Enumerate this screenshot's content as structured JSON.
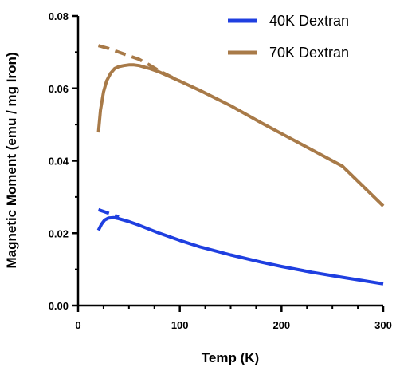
{
  "chart_data": {
    "type": "line",
    "xlabel": "Temp (K)",
    "ylabel": "Magnetic Moment (emu / mg Iron)",
    "xlim": [
      0,
      300
    ],
    "ylim": [
      0,
      0.08
    ],
    "xticks": [
      "0",
      "100",
      "200",
      "300"
    ],
    "yticks": [
      "0.00",
      "0.02",
      "0.04",
      "0.06",
      "0.08"
    ],
    "grid": false,
    "legend_position": "top-right",
    "series": [
      {
        "name": "40K Dextran",
        "color": "#1f3fe0",
        "curves": [
          {
            "style": "solid",
            "x": [
              20,
              23,
              26,
              30,
              35,
              40,
              50,
              60,
              80,
              100,
              120,
              150,
              180,
              200,
              230,
              260,
              300
            ],
            "y": [
              0.0208,
              0.0225,
              0.0236,
              0.0242,
              0.0243,
              0.024,
              0.0232,
              0.0222,
              0.02,
              0.018,
              0.0162,
              0.014,
              0.012,
              0.0108,
              0.0092,
              0.0078,
              0.006
            ]
          },
          {
            "style": "dashed",
            "x": [
              20,
              25,
              30,
              35,
              40
            ],
            "y": [
              0.0265,
              0.026,
              0.0255,
              0.025,
              0.0245
            ]
          }
        ]
      },
      {
        "name": "70K Dextran",
        "color": "#a87a48",
        "curves": [
          {
            "style": "solid",
            "x": [
              20,
              22,
              25,
              28,
              32,
              36,
              40,
              45,
              50,
              55,
              60,
              70,
              80,
              100,
              120,
              150,
              180,
              200,
              230,
              260,
              300
            ],
            "y": [
              0.0478,
              0.054,
              0.059,
              0.062,
              0.0642,
              0.0655,
              0.066,
              0.0663,
              0.0665,
              0.0665,
              0.0663,
              0.0655,
              0.0645,
              0.062,
              0.0594,
              0.0552,
              0.0505,
              0.0475,
              0.043,
              0.0385,
              0.0275
            ]
          },
          {
            "style": "dashed",
            "x": [
              20,
              30,
              40,
              50,
              60,
              70,
              80,
              100
            ],
            "y": [
              0.0718,
              0.071,
              0.07,
              0.069,
              0.068,
              0.0665,
              0.0648,
              0.062
            ]
          }
        ]
      }
    ]
  }
}
